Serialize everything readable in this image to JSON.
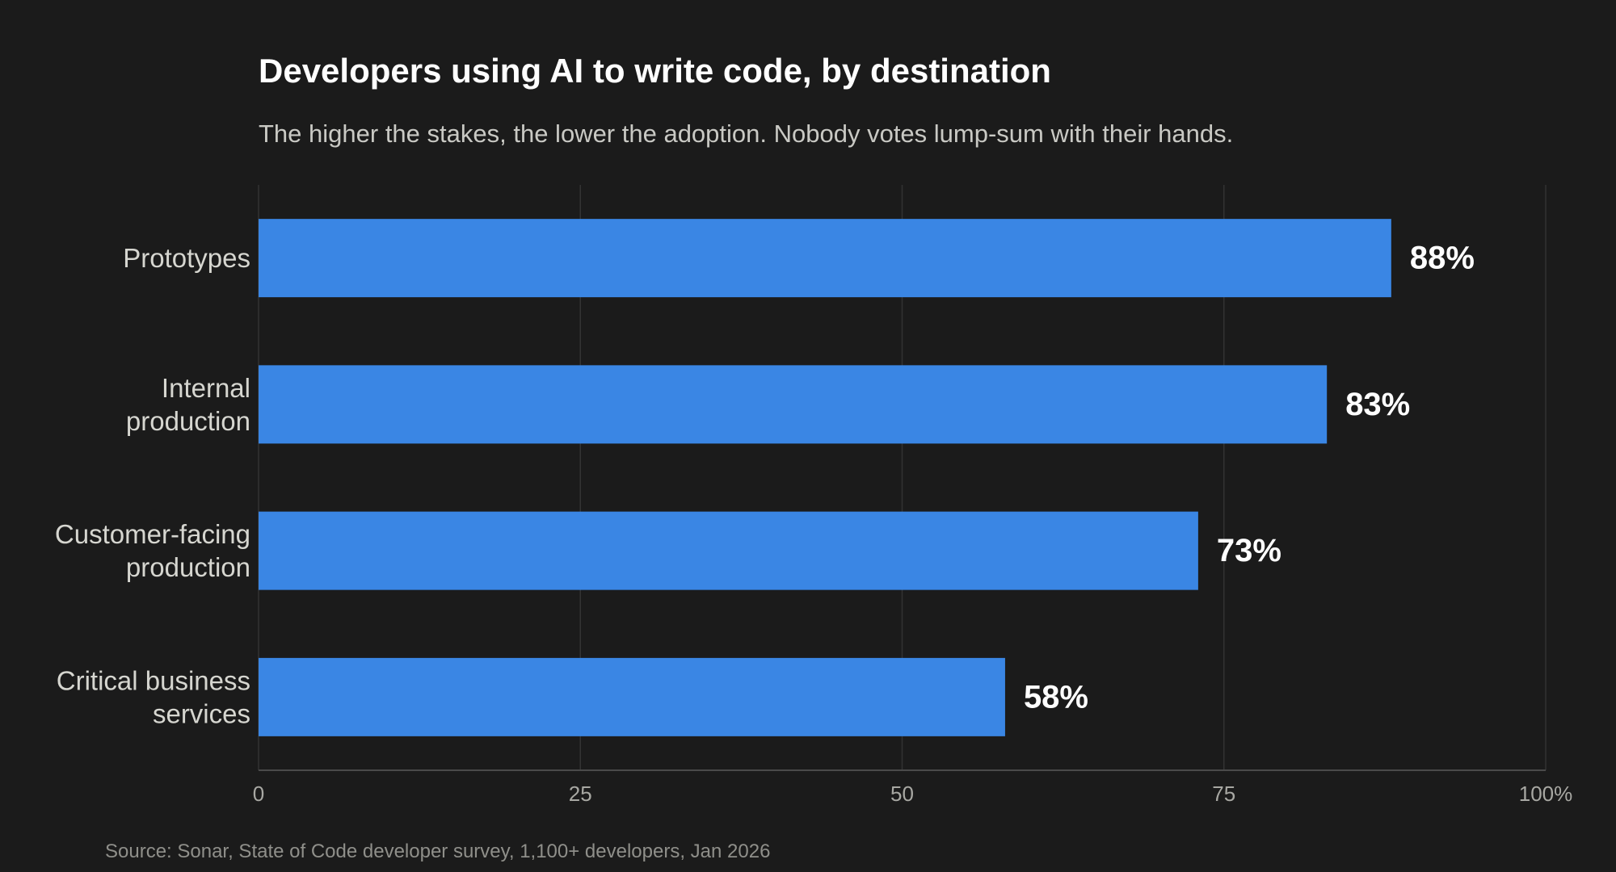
{
  "title": "Developers using AI to write code, by destination",
  "subtitle": "The higher the stakes, the lower the adoption. Nobody votes lump-sum with their hands.",
  "source": "Source: Sonar, State of Code developer survey, 1,100+ developers, Jan 2026",
  "colors": {
    "background": "#1b1b1b",
    "bar": "#3a86e4",
    "grid": "#333333",
    "axis": "#4a4a4a",
    "category_label": "#d6d6d0",
    "tick_label": "#a8a8a3",
    "value_label": "#ffffff"
  },
  "chart_data": {
    "type": "bar",
    "orientation": "horizontal",
    "categories": [
      [
        "Prototypes"
      ],
      [
        "Internal",
        "production"
      ],
      [
        "Customer-facing",
        "production"
      ],
      [
        "Critical business",
        "services"
      ]
    ],
    "values": [
      88,
      83,
      73,
      58
    ],
    "value_labels": [
      "88%",
      "83%",
      "73%",
      "58%"
    ],
    "xlim": [
      0,
      100
    ],
    "xticks": [
      0,
      25,
      50,
      75,
      100
    ],
    "xtick_labels": [
      "0",
      "25",
      "50",
      "75",
      "100%"
    ],
    "grid": "vertical",
    "legend": "none"
  }
}
